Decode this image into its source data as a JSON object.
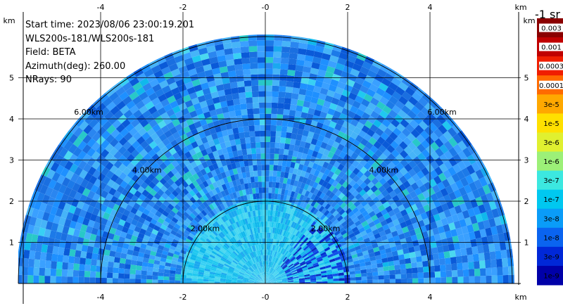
{
  "info": {
    "start_time": "Start time: 2023/08/06 23:00:19.201",
    "device": "WLS200s-181/WLS200s-181",
    "field": "Field: BETA",
    "azimuth": "Azimuth(deg): 260.00",
    "nrays": "NRays: 90"
  },
  "axes": {
    "x_ticks": [
      "-4",
      "-2",
      "-0",
      "2",
      "4"
    ],
    "x_tick_values": [
      -4,
      -2,
      0,
      2,
      4
    ],
    "y_ticks": [
      "1",
      "2",
      "3",
      "4",
      "5"
    ],
    "y_tick_values": [
      1,
      2,
      3,
      4,
      5
    ],
    "unit": "km",
    "xlim": [
      -6,
      6
    ],
    "ylim": [
      0,
      6
    ],
    "grid": true
  },
  "rings": [
    {
      "radius_km": 2,
      "label": "2.00km"
    },
    {
      "radius_km": 4,
      "label": "4.00km"
    },
    {
      "radius_km": 6,
      "label": "6.00km"
    }
  ],
  "colorbar": {
    "title": "-1 sr",
    "levels": [
      {
        "label": "0.003",
        "color": "#8a0000"
      },
      {
        "label": "0.001",
        "color": "#c00000"
      },
      {
        "label": "0.0003",
        "color": "#f01e00"
      },
      {
        "label": "0.0001",
        "color": "#ff6a00"
      },
      {
        "label": "3e-5",
        "color": "#ffa800"
      },
      {
        "label": "1e-5",
        "color": "#ffe000"
      },
      {
        "label": "3e-6",
        "color": "#e0f030"
      },
      {
        "label": "1e-6",
        "color": "#9cf078"
      },
      {
        "label": "3e-7",
        "color": "#3ce8e0"
      },
      {
        "label": "1e-7",
        "color": "#00c8f0"
      },
      {
        "label": "3e-8",
        "color": "#0a9cf8"
      },
      {
        "label": "1e-8",
        "color": "#0a64f0"
      },
      {
        "label": "3e-9",
        "color": "#0028d8"
      },
      {
        "label": "1e-9",
        "color": "#0000a8"
      }
    ]
  }
}
